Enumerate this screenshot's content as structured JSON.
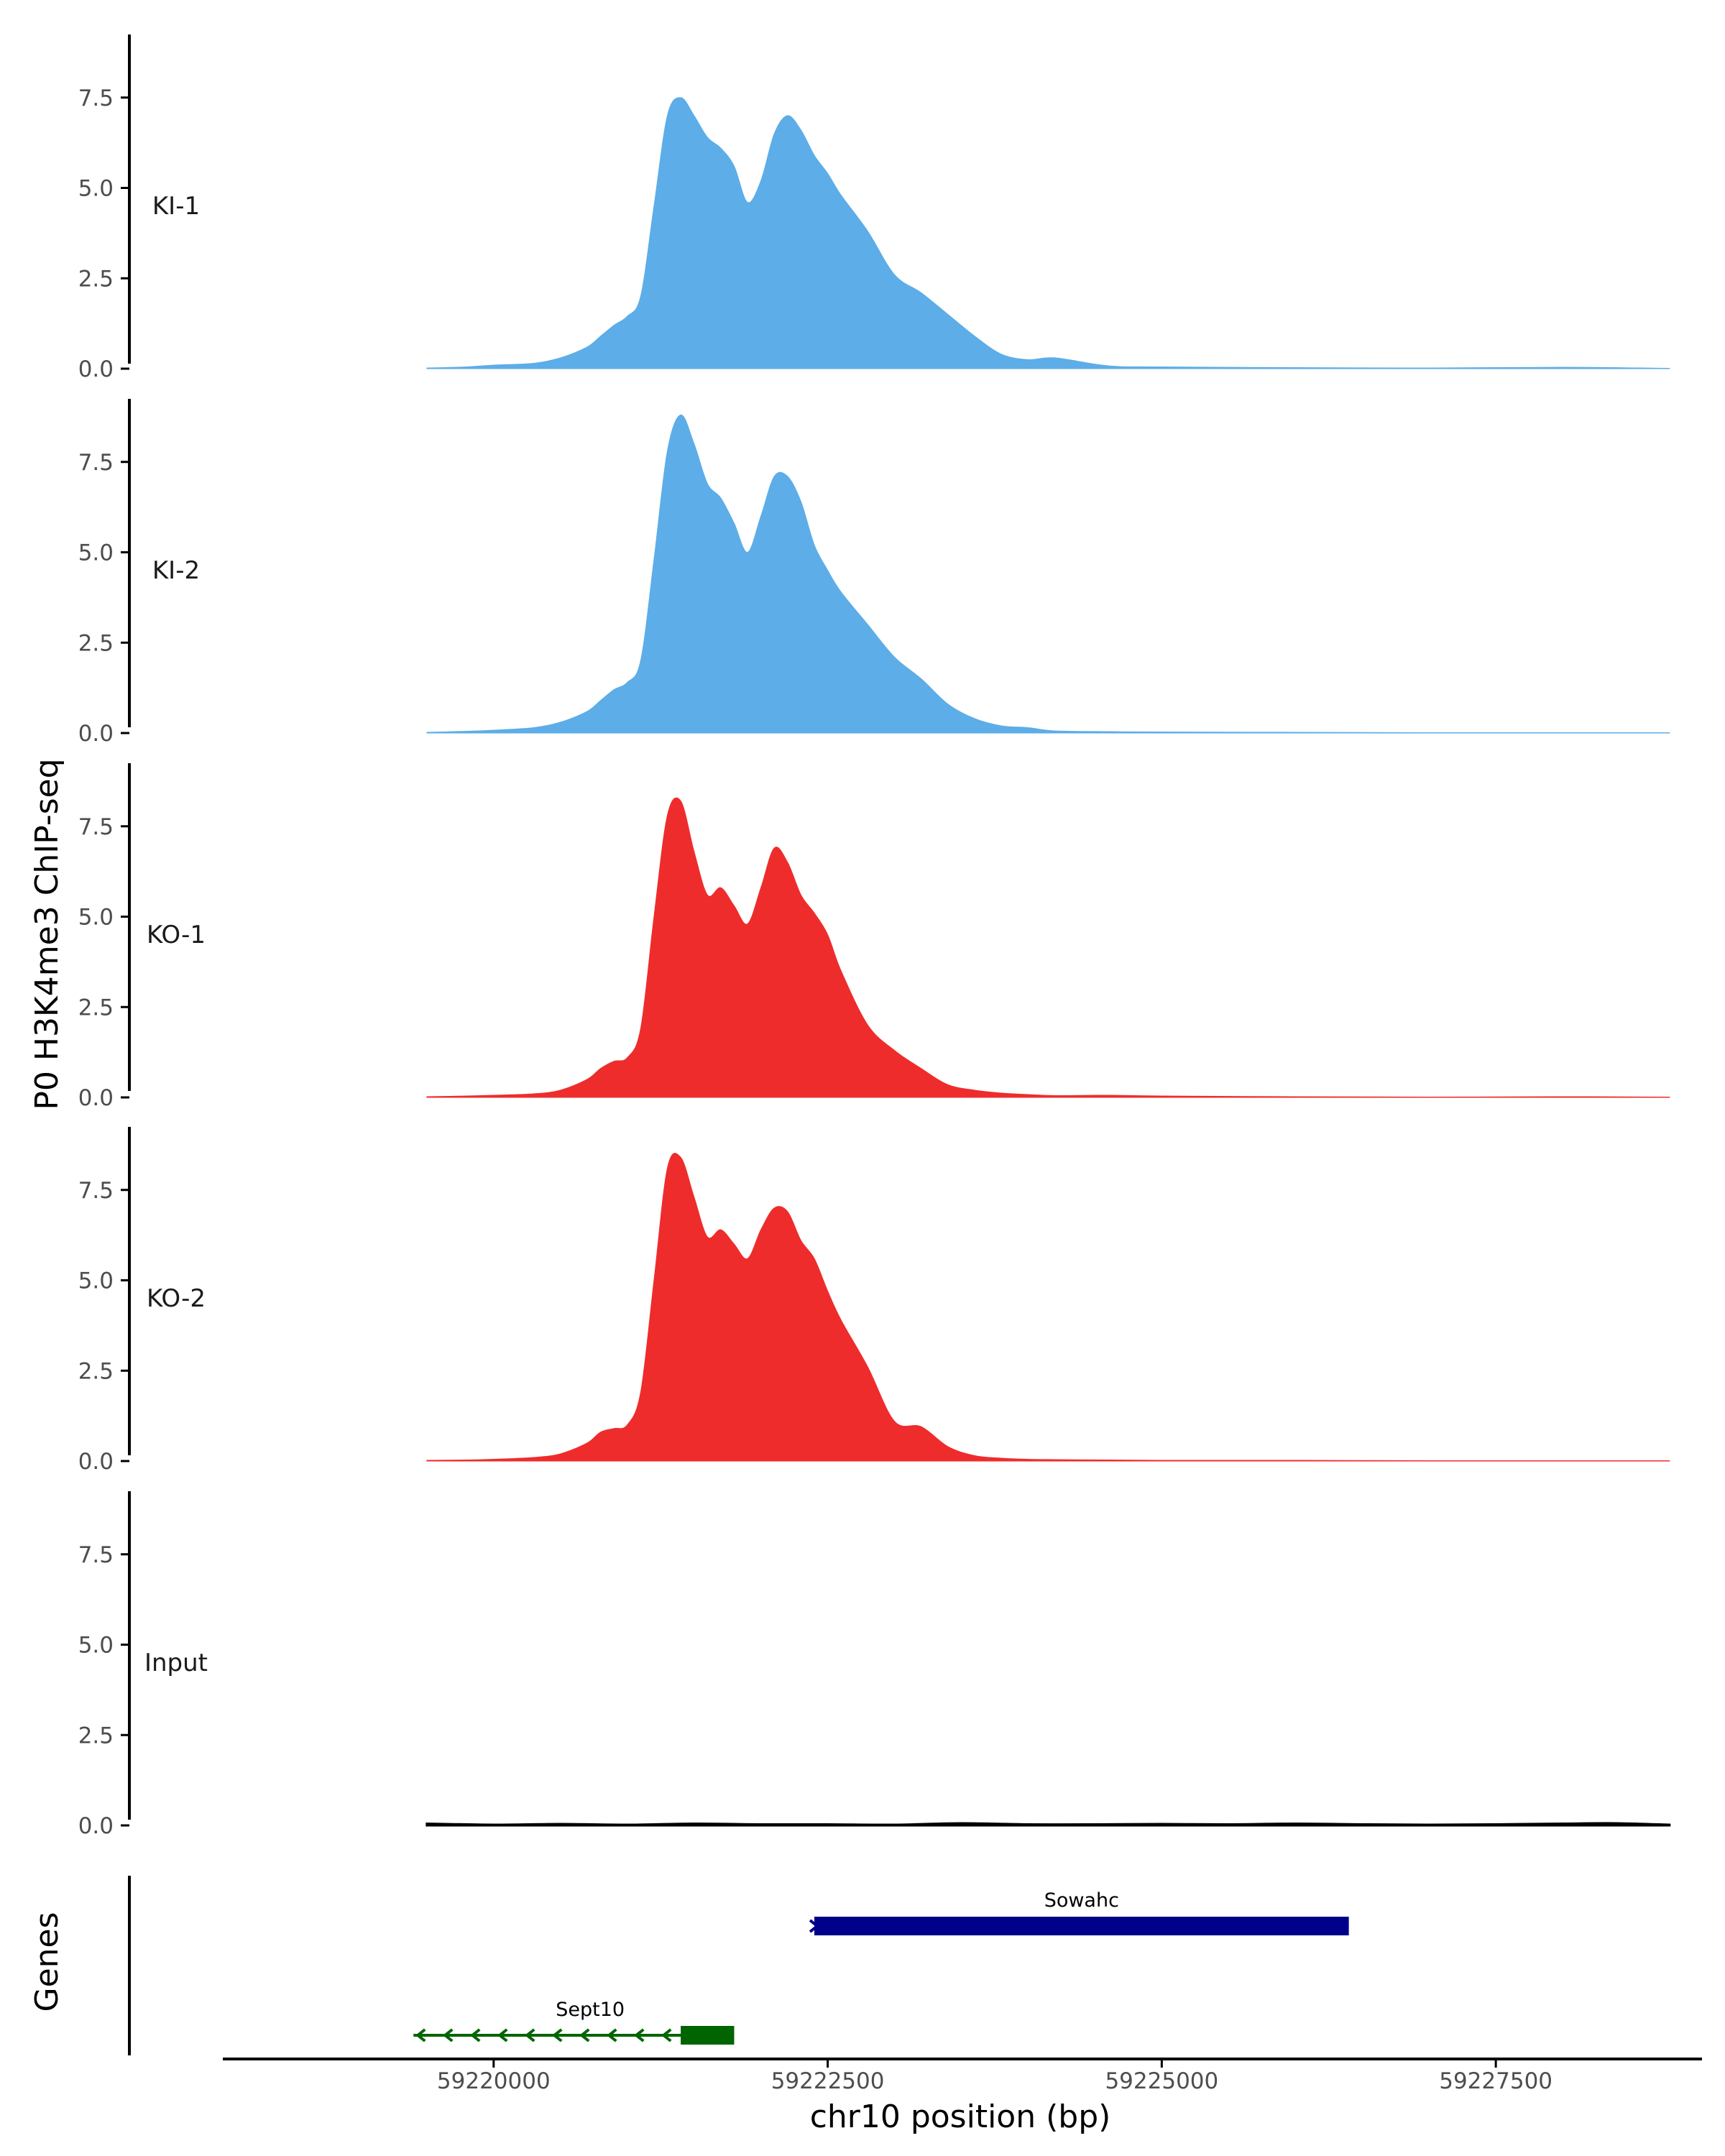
{
  "chart_data": {
    "type": "area",
    "ylabel": "P0 H3K4me3 ChIP-seq",
    "xlabel": "chr10 position (bp)",
    "xlim": [
      59218000,
      59229000
    ],
    "ylim": [
      0,
      9.2
    ],
    "x_ticks": [
      59220000,
      59222500,
      59225000,
      59227500
    ],
    "x_tick_labels": [
      "59220000",
      "59222500",
      "59225000",
      "59227500"
    ],
    "y_ticks": [
      0,
      2.5,
      5.0,
      7.5
    ],
    "y_tick_labels": [
      "0.0",
      "2.5",
      "5.0",
      "7.5"
    ],
    "grid": false,
    "colors": {
      "KI": "#5dade8",
      "KO": "#ee2c2c",
      "Input": "#000000",
      "Sowahc": "#00008b",
      "Sept10": "#006400",
      "axis": "#000000"
    },
    "series": [
      {
        "name": "KI-1",
        "color": "#5dade8",
        "x": [
          59219500,
          59219800,
          59220000,
          59220300,
          59220500,
          59220700,
          59220800,
          59220900,
          59221000,
          59221100,
          59221200,
          59221300,
          59221400,
          59221500,
          59221600,
          59221700,
          59221800,
          59221900,
          59222000,
          59222100,
          59222200,
          59222300,
          59222400,
          59222500,
          59222600,
          59222800,
          59223000,
          59223200,
          59223400,
          59223600,
          59223800,
          59224000,
          59224200,
          59224600,
          59225000,
          59226000,
          59227000,
          59228000,
          59228800
        ],
        "y": [
          0.02,
          0.05,
          0.1,
          0.15,
          0.3,
          0.6,
          0.9,
          1.2,
          1.45,
          2.0,
          4.5,
          7.0,
          7.5,
          7.0,
          6.4,
          6.1,
          5.6,
          4.6,
          5.2,
          6.5,
          7.0,
          6.6,
          5.9,
          5.4,
          4.8,
          3.8,
          2.6,
          2.1,
          1.5,
          0.9,
          0.4,
          0.25,
          0.3,
          0.08,
          0.05,
          0.03,
          0.02,
          0.04,
          0.01
        ]
      },
      {
        "name": "KI-2",
        "color": "#5dade8",
        "x": [
          59219500,
          59219800,
          59220000,
          59220300,
          59220500,
          59220700,
          59220800,
          59220900,
          59221000,
          59221100,
          59221200,
          59221300,
          59221400,
          59221500,
          59221600,
          59221700,
          59221800,
          59221900,
          59222000,
          59222100,
          59222200,
          59222300,
          59222400,
          59222500,
          59222600,
          59222800,
          59223000,
          59223200,
          59223400,
          59223600,
          59223800,
          59224000,
          59224200,
          59224600,
          59225000,
          59226000,
          59227000,
          59228000,
          59228800
        ],
        "y": [
          0.02,
          0.05,
          0.08,
          0.15,
          0.3,
          0.6,
          0.9,
          1.2,
          1.4,
          2.0,
          4.8,
          7.8,
          8.8,
          8.0,
          6.9,
          6.5,
          5.8,
          5.0,
          6.0,
          7.1,
          7.1,
          6.4,
          5.2,
          4.5,
          3.9,
          3.0,
          2.1,
          1.5,
          0.8,
          0.4,
          0.2,
          0.15,
          0.06,
          0.04,
          0.03,
          0.02,
          0.01,
          0.01,
          0.01
        ]
      },
      {
        "name": "KO-1",
        "color": "#ee2c2c",
        "x": [
          59219500,
          59219800,
          59220000,
          59220300,
          59220500,
          59220700,
          59220800,
          59220900,
          59221000,
          59221100,
          59221200,
          59221300,
          59221400,
          59221500,
          59221600,
          59221700,
          59221800,
          59221900,
          59222000,
          59222100,
          59222200,
          59222300,
          59222400,
          59222500,
          59222600,
          59222800,
          59223000,
          59223200,
          59223400,
          59223600,
          59223800,
          59224000,
          59224200,
          59224600,
          59225000,
          59226000,
          59227000,
          59228000,
          59228800
        ],
        "y": [
          0.02,
          0.04,
          0.06,
          0.1,
          0.2,
          0.5,
          0.8,
          1.0,
          1.1,
          1.9,
          5.0,
          7.8,
          8.2,
          6.8,
          5.6,
          5.8,
          5.3,
          4.8,
          5.8,
          6.9,
          6.5,
          5.6,
          5.1,
          4.5,
          3.5,
          2.0,
          1.3,
          0.8,
          0.35,
          0.2,
          0.12,
          0.08,
          0.05,
          0.06,
          0.04,
          0.02,
          0.01,
          0.02,
          0.01
        ]
      },
      {
        "name": "KO-2",
        "color": "#ee2c2c",
        "x": [
          59219500,
          59219800,
          59220000,
          59220300,
          59220500,
          59220700,
          59220800,
          59220900,
          59221000,
          59221100,
          59221200,
          59221300,
          59221400,
          59221500,
          59221600,
          59221700,
          59221800,
          59221900,
          59222000,
          59222100,
          59222200,
          59222300,
          59222400,
          59222500,
          59222600,
          59222800,
          59223000,
          59223200,
          59223400,
          59223600,
          59223800,
          59224000,
          59224200,
          59224600,
          59225000,
          59226000,
          59227000,
          59228000,
          59228800
        ],
        "y": [
          0.02,
          0.03,
          0.05,
          0.1,
          0.2,
          0.5,
          0.8,
          0.9,
          1.0,
          1.9,
          5.0,
          8.1,
          8.4,
          7.3,
          6.2,
          6.4,
          6.0,
          5.6,
          6.4,
          7.0,
          6.9,
          6.1,
          5.6,
          4.7,
          3.9,
          2.6,
          1.1,
          0.95,
          0.4,
          0.15,
          0.08,
          0.05,
          0.04,
          0.03,
          0.02,
          0.02,
          0.01,
          0.01,
          0.01
        ]
      },
      {
        "name": "Input",
        "color": "#000000",
        "x": [
          59219500,
          59220000,
          59220500,
          59221000,
          59221500,
          59222000,
          59222500,
          59223000,
          59223500,
          59224000,
          59224500,
          59225000,
          59225500,
          59226000,
          59226500,
          59227000,
          59227500,
          59228000,
          59228400,
          59228800
        ],
        "y": [
          0.05,
          0.02,
          0.04,
          0.02,
          0.05,
          0.03,
          0.03,
          0.02,
          0.06,
          0.03,
          0.03,
          0.04,
          0.03,
          0.05,
          0.03,
          0.02,
          0.03,
          0.05,
          0.06,
          0.02
        ]
      }
    ],
    "genes": [
      {
        "name": "Sowahc",
        "start": 59222400,
        "end": 59226400,
        "strand": "+",
        "color": "#00008b"
      },
      {
        "name": "Sept10",
        "start": 59219400,
        "end": 59221800,
        "strand": "-",
        "color": "#006400",
        "cds_start": 59221400,
        "cds_end": 59221800
      }
    ],
    "gene_axis_label": "Genes"
  }
}
